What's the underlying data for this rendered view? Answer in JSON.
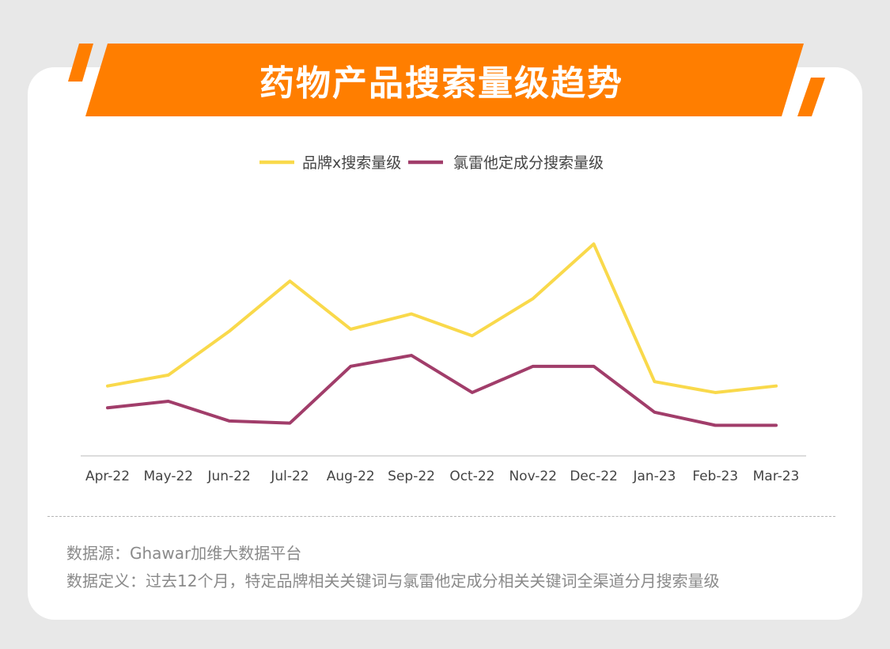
{
  "title": "药物产品搜索量级趋势",
  "colors": {
    "banner": "#ff7e00",
    "series_brand": "#f9d94b",
    "series_ingredient": "#a13d6a",
    "axis": "#d0d0d0"
  },
  "chart_data": {
    "type": "line",
    "categories": [
      "Apr-22",
      "May-22",
      "Jun-22",
      "Jul-22",
      "Aug-22",
      "Sep-22",
      "Oct-22",
      "Nov-22",
      "Dec-22",
      "Jan-23",
      "Feb-23",
      "Mar-23"
    ],
    "series": [
      {
        "name": "品牌x搜索量级",
        "values": [
          32,
          37,
          57,
          80,
          58,
          65,
          55,
          72,
          97,
          34,
          29,
          32
        ]
      },
      {
        "name": "氯雷他定成分搜索量级",
        "values": [
          22,
          25,
          16,
          15,
          41,
          46,
          29,
          41,
          41,
          20,
          14,
          14
        ]
      }
    ],
    "ylim": [
      0,
      100
    ],
    "grid": false,
    "legend_position": "top-center",
    "xlabel": "",
    "ylabel": ""
  },
  "notes": {
    "source": "数据源：Ghawar加维大数据平台",
    "definition": "数据定义：过去12个月，特定品牌相关关键词与氯雷他定成分相关关键词全渠道分月搜索量级"
  }
}
